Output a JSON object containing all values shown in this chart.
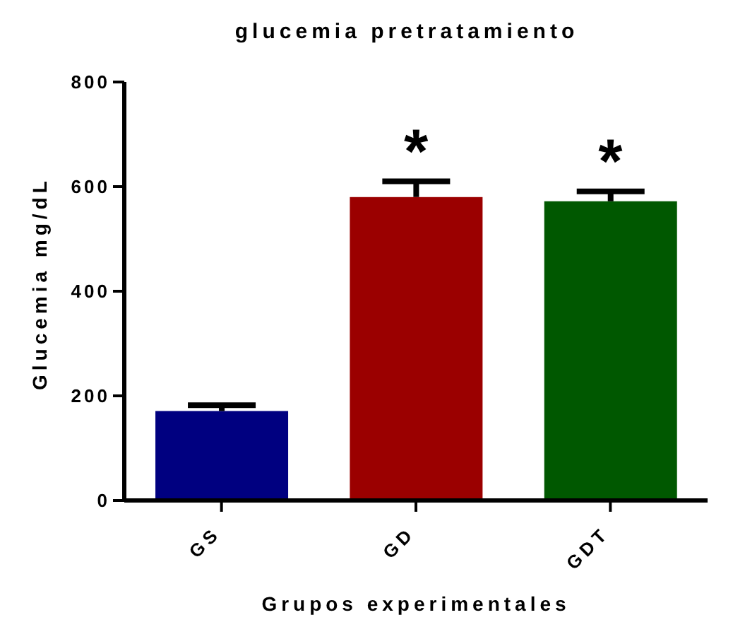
{
  "chart_data": {
    "type": "bar",
    "title": "glucemia pretratamiento",
    "xlabel": "Grupos experimentales",
    "ylabel": "Glucemia mg/dL",
    "categories": [
      "GS",
      "GD",
      "GDT"
    ],
    "values": [
      171,
      580,
      572
    ],
    "colors": [
      "#000080",
      "#9b0000",
      "#005800"
    ],
    "errors": [
      [
        171,
        182
      ],
      [
        580,
        610
      ],
      [
        572,
        591
      ]
    ],
    "ylim": [
      0,
      800
    ],
    "yticks": [
      0,
      200,
      400,
      600,
      800
    ],
    "grid": false,
    "legend": false,
    "annotations": [
      "*",
      "*"
    ]
  }
}
